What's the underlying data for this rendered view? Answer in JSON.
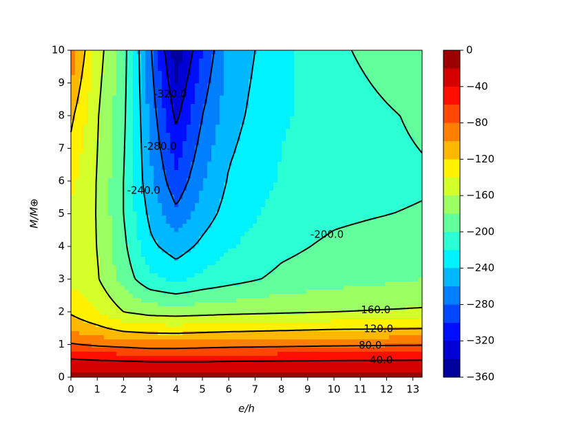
{
  "chart_data": {
    "type": "contour",
    "xlabel": "e/h",
    "ylabel": "M/M⊕",
    "x": [
      0,
      1,
      2,
      3,
      4,
      5,
      6,
      8,
      10,
      13.35
    ],
    "y": [
      0,
      0.5,
      1,
      1.5,
      2,
      3,
      4,
      5,
      6,
      8,
      10
    ],
    "z": [
      [
        -10,
        -10,
        -10,
        -10,
        -10,
        -10,
        -10,
        -10,
        -10,
        -10
      ],
      [
        -35,
        -38,
        -40,
        -42,
        -42,
        -42,
        -41,
        -40,
        -39,
        -38
      ],
      [
        -78,
        -84,
        -88,
        -92,
        -92,
        -90,
        -88,
        -86,
        -84,
        -82
      ],
      [
        -105,
        -115,
        -128,
        -132,
        -133,
        -131,
        -129,
        -126,
        -123,
        -121
      ],
      [
        -123,
        -140,
        -160,
        -168,
        -170,
        -168,
        -166,
        -163,
        -160,
        -157
      ],
      [
        -145,
        -158,
        -188,
        -215,
        -225,
        -215,
        -208,
        -195,
        -188,
        -180
      ],
      [
        -148,
        -160,
        -195,
        -235,
        -250,
        -235,
        -222,
        -205,
        -196,
        -188
      ],
      [
        -143,
        -161,
        -200,
        -245,
        -275,
        -250,
        -232,
        -212,
        -204,
        -198
      ],
      [
        -135,
        -161,
        -200,
        -255,
        -295,
        -262,
        -238,
        -218,
        -210,
        -203
      ],
      [
        -115,
        -158,
        -195,
        -265,
        -325,
        -280,
        -248,
        -222,
        -212,
        -196
      ],
      [
        -85,
        -150,
        -190,
        -275,
        -355,
        -300,
        -255,
        -225,
        -205,
        -180
      ]
    ],
    "levels": [
      -360,
      -340,
      -320,
      -300,
      -280,
      -260,
      -240,
      -220,
      -200,
      -180,
      -160,
      -140,
      -120,
      -100,
      -80,
      -60,
      -40,
      -20,
      0
    ],
    "colormap": "jet",
    "contour_levels": [
      {
        "value": -320,
        "label": "-320.0"
      },
      {
        "value": -280,
        "label": "-280.0"
      },
      {
        "value": -240,
        "label": "-240.0"
      },
      {
        "value": -200,
        "label": "-200.0"
      },
      {
        "value": -160,
        "label": "-160.0"
      },
      {
        "value": -120,
        "label": "-120.0"
      },
      {
        "value": -80,
        "label": "-80.0"
      },
      {
        "value": -40,
        "label": "-40.0"
      }
    ],
    "xlim": [
      0,
      13.35
    ],
    "ylim": [
      0,
      10
    ],
    "xticks": [
      0,
      1,
      2,
      3,
      4,
      5,
      6,
      7,
      8,
      9,
      10,
      11,
      12,
      13
    ],
    "yticks": [
      0,
      1,
      2,
      3,
      4,
      5,
      6,
      7,
      8,
      9,
      10
    ],
    "colorbar_ticks": [
      {
        "value": -360,
        "label": "−360"
      },
      {
        "value": -320,
        "label": "−320"
      },
      {
        "value": -280,
        "label": "−280"
      },
      {
        "value": -240,
        "label": "−240"
      },
      {
        "value": -200,
        "label": "−200"
      },
      {
        "value": -160,
        "label": "−160"
      },
      {
        "value": -120,
        "label": "−120"
      },
      {
        "value": -80,
        "label": "−80"
      },
      {
        "value": -40,
        "label": "−40"
      },
      0
    ]
  }
}
